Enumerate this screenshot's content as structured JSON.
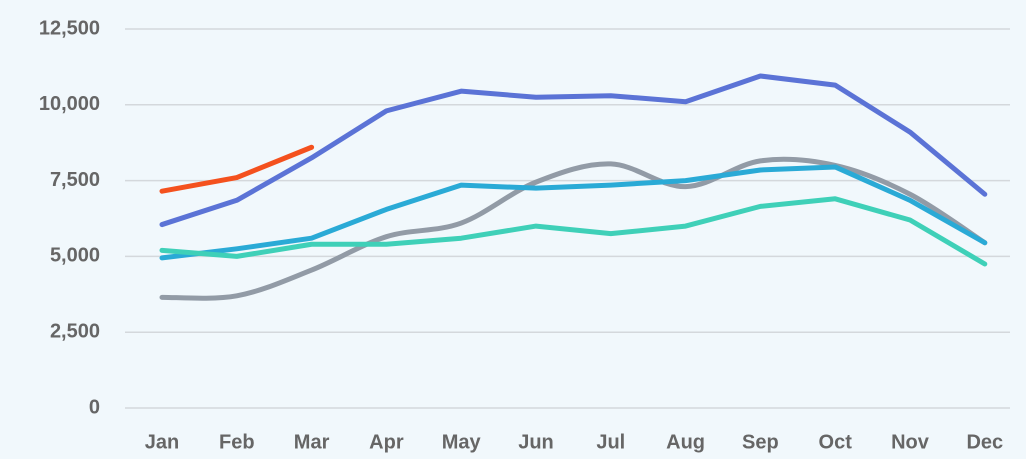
{
  "chart_data": {
    "type": "line",
    "categories": [
      "Jan",
      "Feb",
      "Mar",
      "Apr",
      "May",
      "Jun",
      "Jul",
      "Aug",
      "Sep",
      "Oct",
      "Nov",
      "Dec"
    ],
    "series": [
      {
        "color": "#5b73d6",
        "values": [
          6050,
          6850,
          8250,
          9800,
          10450,
          10250,
          10300,
          10100,
          10950,
          10650,
          9100,
          7050
        ]
      },
      {
        "color": "#929ba6",
        "smooth": true,
        "values": [
          3650,
          3700,
          4550,
          5650,
          6100,
          7450,
          8050,
          7300,
          8150,
          8000,
          7050,
          5450
        ]
      },
      {
        "color": "#2aaad6",
        "values": [
          4950,
          5250,
          5600,
          6550,
          7350,
          7250,
          7350,
          7500,
          7850,
          7950,
          6850,
          5450
        ]
      },
      {
        "color": "#3fd0b8",
        "values": [
          5200,
          5000,
          5400,
          5400,
          5600,
          6000,
          5750,
          6000,
          6650,
          6900,
          6200,
          4750
        ]
      },
      {
        "color": "#f4511e",
        "values": [
          7150,
          7600,
          8600,
          null,
          null,
          null,
          null,
          null,
          null,
          null,
          null,
          null
        ]
      }
    ],
    "ylim": [
      0,
      12500
    ],
    "yticks": [
      {
        "value": 0,
        "label": "0"
      },
      {
        "value": 2500,
        "label": "2,500"
      },
      {
        "value": 5000,
        "label": "5,000"
      },
      {
        "value": 7500,
        "label": "7,500"
      },
      {
        "value": 10000,
        "label": "10,000"
      },
      {
        "value": 12500,
        "label": "12,500"
      }
    ],
    "grid": true
  }
}
